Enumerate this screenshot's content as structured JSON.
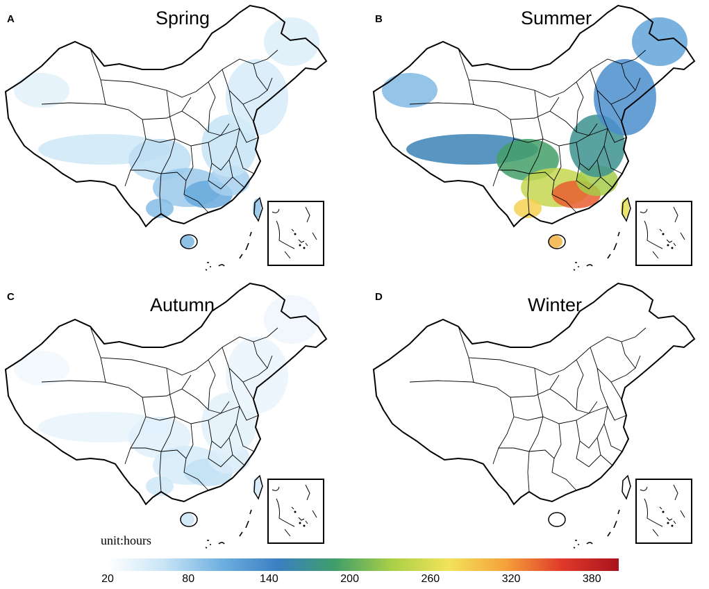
{
  "panels": [
    {
      "letter": "A",
      "title": "Spring",
      "heat_level": 0.28
    },
    {
      "letter": "B",
      "title": "Summer",
      "heat_level": 1.0
    },
    {
      "letter": "C",
      "title": "Autumn",
      "heat_level": 0.14
    },
    {
      "letter": "D",
      "title": "Winter",
      "heat_level": 0.0
    }
  ],
  "legend": {
    "unit_label": "unit:hours",
    "ticks": [
      "20",
      "80",
      "140",
      "200",
      "260",
      "320",
      "380"
    ],
    "min": 20,
    "max": 400,
    "gradient_colors": [
      "#ffffff",
      "#c8e4f6",
      "#6fb0e0",
      "#3a7fc3",
      "#3f9e6a",
      "#a9cf47",
      "#f2e35a",
      "#f5a23b",
      "#e0392a",
      "#a8141d"
    ]
  }
}
